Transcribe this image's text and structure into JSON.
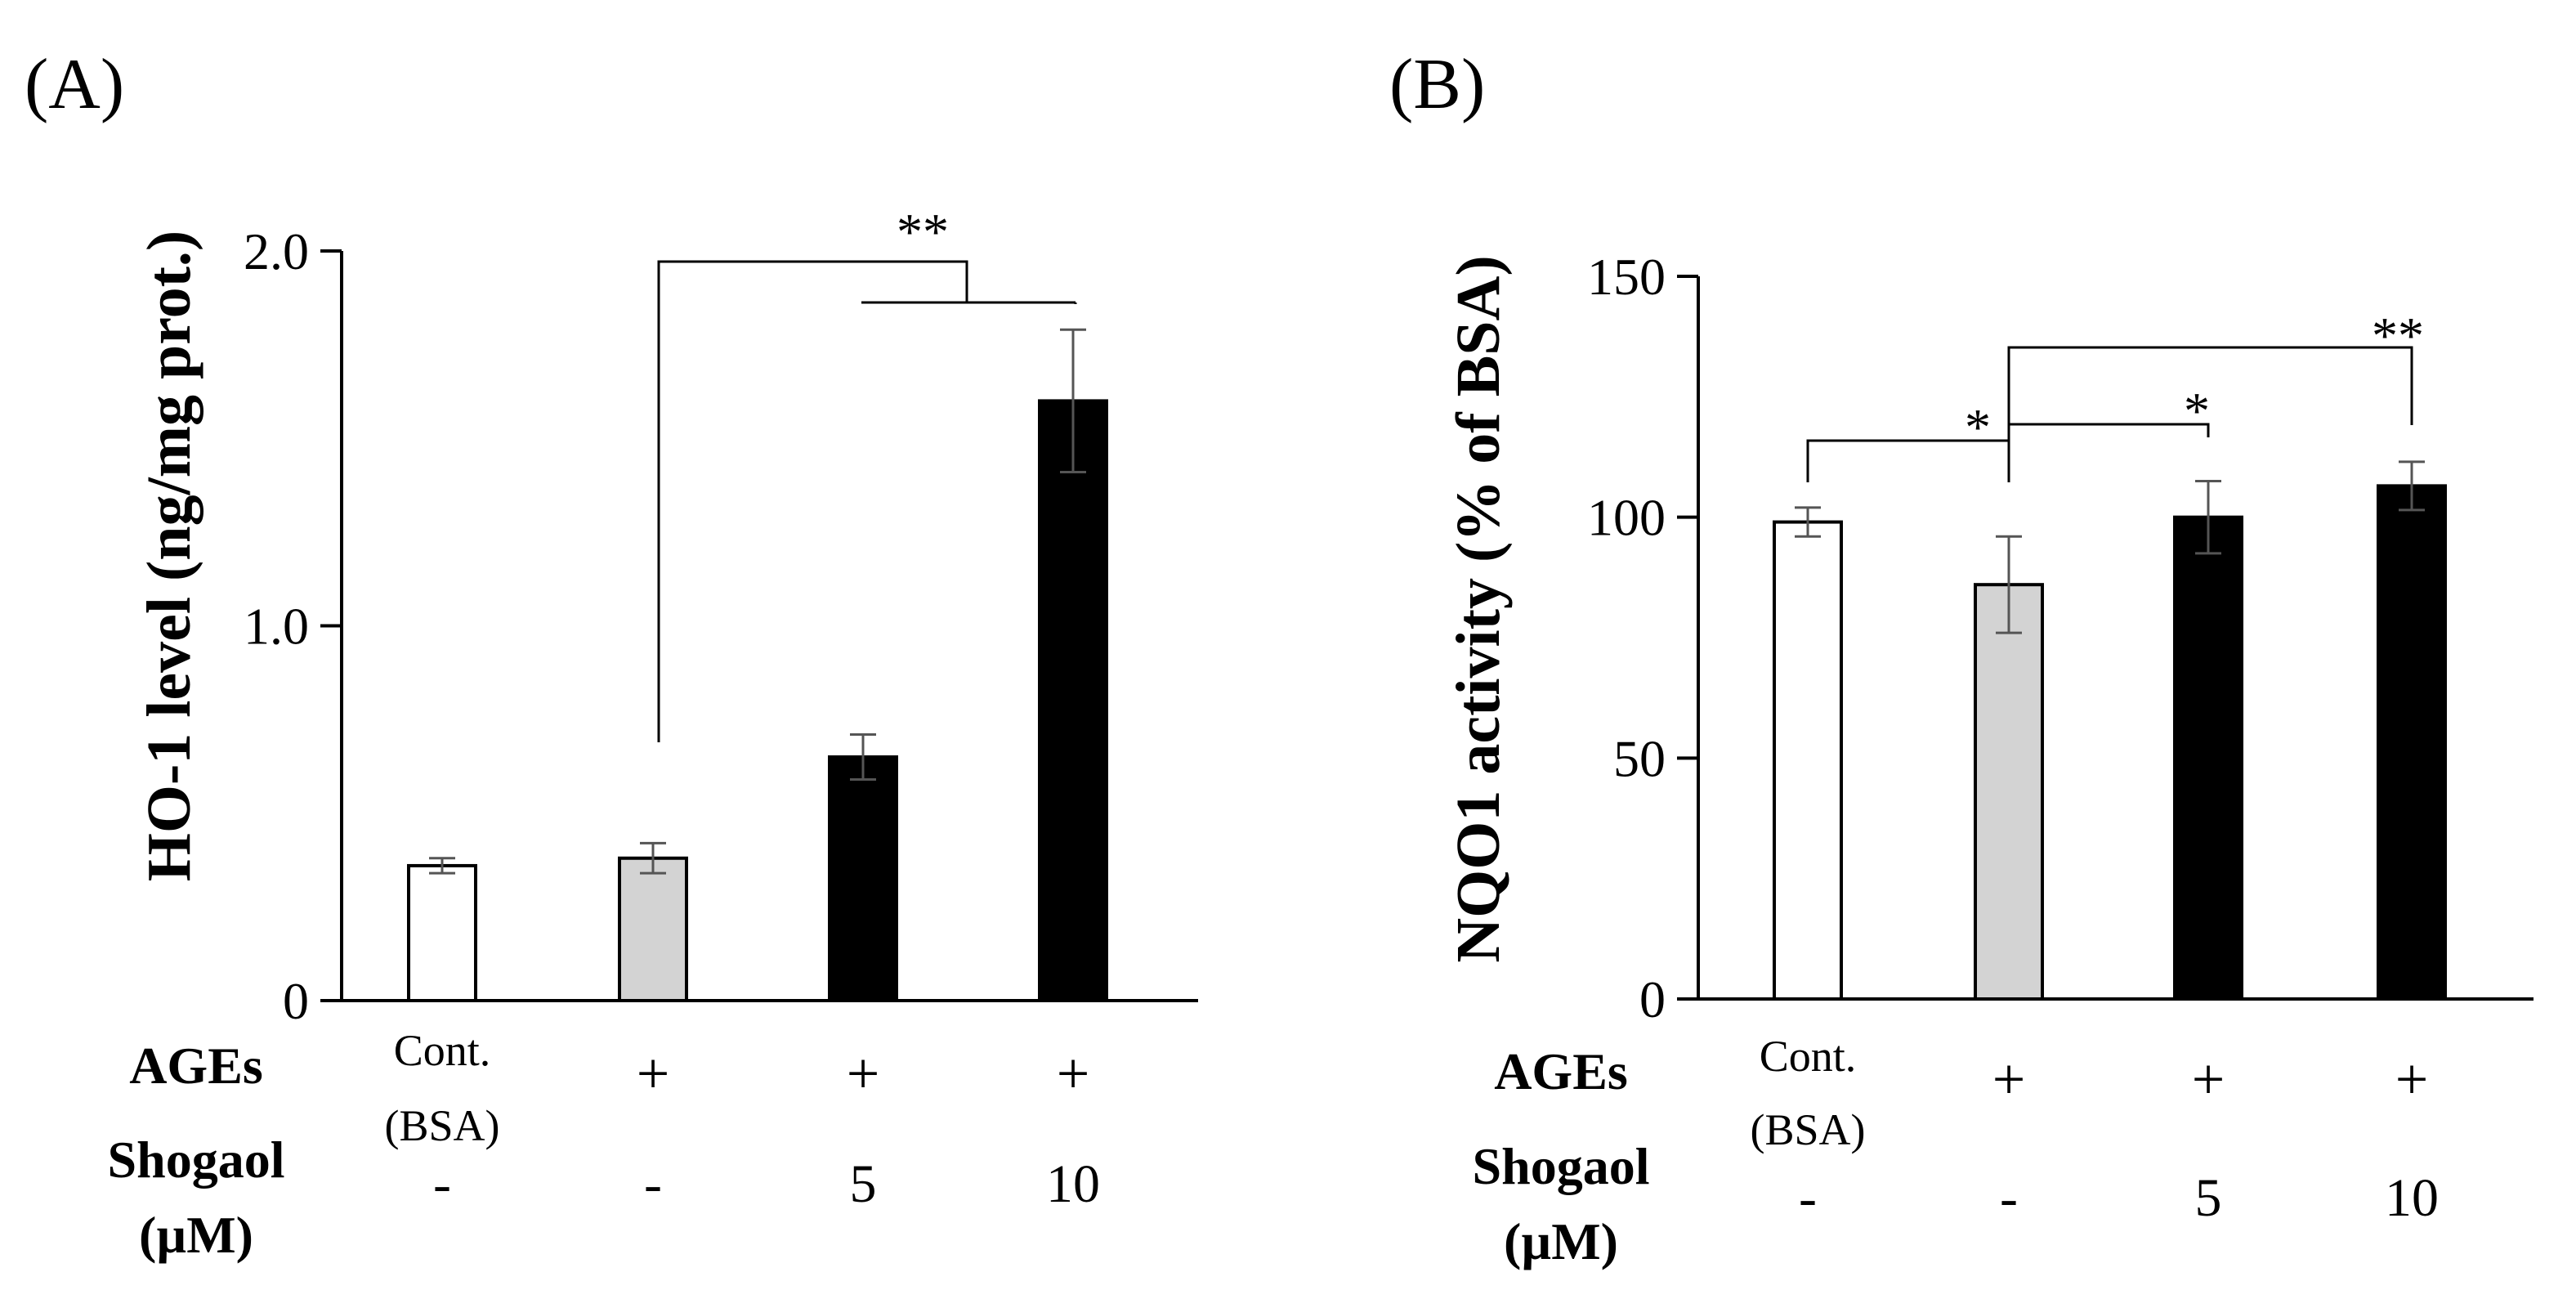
{
  "colors": {
    "white_bar": "#ffffff",
    "gray_bar": "#d3d3d3",
    "black_bar": "#000000",
    "axis": "#000000"
  },
  "row_labels": {
    "ages": "AGEs",
    "shogaol_line1": "Shogaol",
    "shogaol_line2": "(µM)"
  },
  "chart_data": [
    {
      "type": "bar",
      "panel_label": "(A)",
      "ylabel": "HO-1 level (ng/mg prot.)",
      "ylim": [
        0,
        2.0
      ],
      "yticks": [
        "0",
        "1.0",
        "2.0"
      ],
      "ytick_values": [
        0,
        1.0,
        2.0
      ],
      "categories": [
        "Cont. (BSA)",
        "AGEs",
        "AGEs + Shogaol 5",
        "AGEs + Shogaol 10"
      ],
      "values": [
        0.36,
        0.38,
        0.65,
        1.6
      ],
      "errors": [
        0.02,
        0.04,
        0.06,
        0.19
      ],
      "bar_colors": [
        "white",
        "gray",
        "black",
        "black"
      ],
      "ages_row": [
        {
          "line1": "Cont.",
          "line2": "(BSA)"
        },
        {
          "line1": "+",
          "line2": ""
        },
        {
          "line1": "+",
          "line2": ""
        },
        {
          "line1": "+",
          "line2": ""
        }
      ],
      "shogaol_row": [
        "-",
        "-",
        "5",
        "10"
      ],
      "significance": [
        {
          "label": "**",
          "from": 1,
          "to": [
            2,
            3
          ]
        }
      ]
    },
    {
      "type": "bar",
      "panel_label": "(B)",
      "ylabel": "NQO1 activity (% of  BSA)",
      "ylim": [
        0,
        150
      ],
      "yticks": [
        "0",
        "50",
        "100",
        "150"
      ],
      "ytick_values": [
        0,
        50,
        100,
        150
      ],
      "categories": [
        "Cont. (BSA)",
        "AGEs",
        "AGEs + Shogaol 5",
        "AGEs + Shogaol 10"
      ],
      "values": [
        99,
        86,
        100,
        106.5
      ],
      "errors": [
        3,
        10,
        7.5,
        5
      ],
      "bar_colors": [
        "white",
        "gray",
        "black",
        "black"
      ],
      "ages_row": [
        {
          "line1": "Cont.",
          "line2": "(BSA)"
        },
        {
          "line1": "+",
          "line2": ""
        },
        {
          "line1": "+",
          "line2": ""
        },
        {
          "line1": "+",
          "line2": ""
        }
      ],
      "shogaol_row": [
        "-",
        "-",
        "5",
        "10"
      ],
      "significance": [
        {
          "label": "*",
          "from": 0,
          "to": 1
        },
        {
          "label": "*",
          "from": 1,
          "to": 2
        },
        {
          "label": "**",
          "from": 1,
          "to": 3
        }
      ]
    }
  ]
}
